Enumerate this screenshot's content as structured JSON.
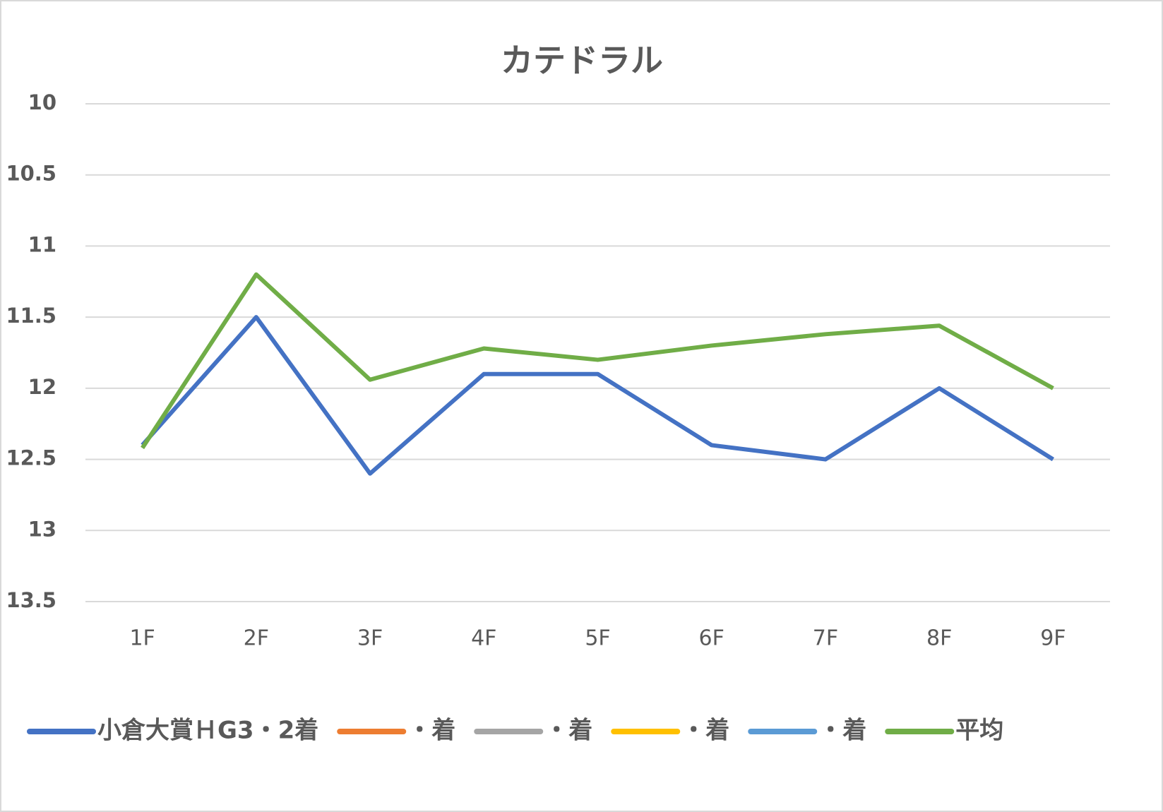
{
  "chart_data": {
    "type": "line",
    "title": "カテドラル",
    "categories": [
      "1F",
      "2F",
      "3F",
      "4F",
      "5F",
      "6F",
      "7F",
      "8F",
      "9F"
    ],
    "series": [
      {
        "name": "小倉大賞ＨG3・2着",
        "color": "#4472c4",
        "values": [
          12.4,
          11.5,
          12.6,
          11.9,
          11.9,
          12.4,
          12.5,
          12.0,
          12.5
        ]
      },
      {
        "name": "・着",
        "color": "#ed7d31",
        "values": [
          null,
          null,
          null,
          null,
          null,
          null,
          null,
          null,
          null
        ]
      },
      {
        "name": "・着",
        "color": "#a5a5a5",
        "values": [
          null,
          null,
          null,
          null,
          null,
          null,
          null,
          null,
          null
        ]
      },
      {
        "name": "・着",
        "color": "#ffc000",
        "values": [
          null,
          null,
          null,
          null,
          null,
          null,
          null,
          null,
          null
        ]
      },
      {
        "name": "・着",
        "color": "#5b9bd5",
        "values": [
          null,
          null,
          null,
          null,
          null,
          null,
          null,
          null,
          null
        ]
      },
      {
        "name": "平均",
        "color": "#70ad47",
        "values": [
          12.42,
          11.2,
          11.94,
          11.72,
          11.8,
          11.7,
          11.62,
          11.56,
          12.0
        ]
      }
    ],
    "ylim": [
      10,
      13.5
    ],
    "yticks": [
      10,
      10.5,
      11,
      11.5,
      12,
      12.5,
      13,
      13.5
    ],
    "y_reversed": true,
    "grid": true,
    "legend": "bottom"
  }
}
